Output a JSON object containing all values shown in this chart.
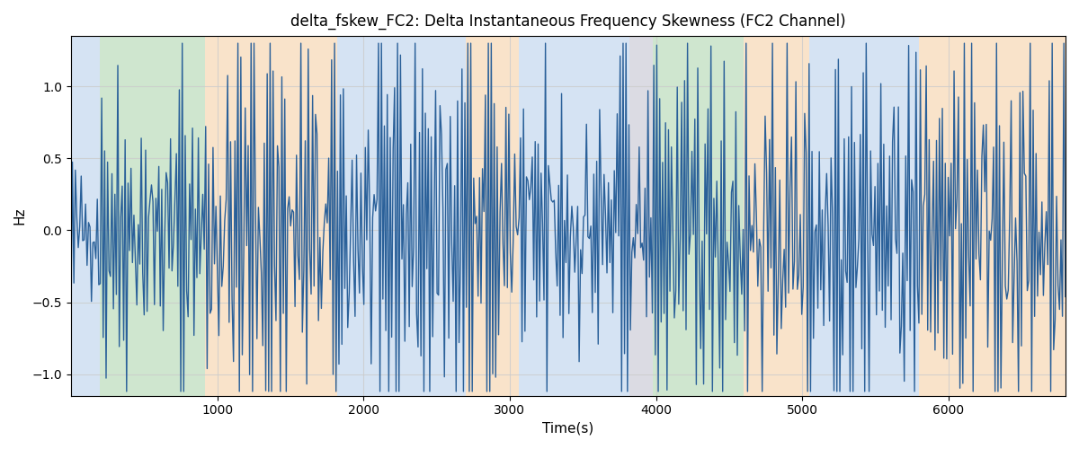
{
  "title": "delta_fskew_FC2: Delta Instantaneous Frequency Skewness (FC2 Channel)",
  "xlabel": "Time(s)",
  "ylabel": "Hz",
  "xlim": [
    0,
    6800
  ],
  "ylim": [
    -1.15,
    1.35
  ],
  "line_color": "#2a6099",
  "line_width": 1.0,
  "bg_bands": [
    {
      "xmin": 0,
      "xmax": 195,
      "color": "#adc8e8",
      "alpha": 0.5
    },
    {
      "xmin": 195,
      "xmax": 915,
      "color": "#96c896",
      "alpha": 0.45
    },
    {
      "xmin": 915,
      "xmax": 1820,
      "color": "#f5c896",
      "alpha": 0.5
    },
    {
      "xmin": 1820,
      "xmax": 2700,
      "color": "#adc8e8",
      "alpha": 0.5
    },
    {
      "xmin": 2700,
      "xmax": 3060,
      "color": "#f5c896",
      "alpha": 0.5
    },
    {
      "xmin": 3060,
      "xmax": 3820,
      "color": "#adc8e8",
      "alpha": 0.5
    },
    {
      "xmin": 3820,
      "xmax": 3980,
      "color": "#b8b8c8",
      "alpha": 0.5
    },
    {
      "xmin": 3980,
      "xmax": 4600,
      "color": "#96c896",
      "alpha": 0.45
    },
    {
      "xmin": 4600,
      "xmax": 5050,
      "color": "#f5c896",
      "alpha": 0.5
    },
    {
      "xmin": 5050,
      "xmax": 5800,
      "color": "#adc8e8",
      "alpha": 0.5
    },
    {
      "xmin": 5800,
      "xmax": 6800,
      "color": "#f5c896",
      "alpha": 0.5
    }
  ],
  "grid_color": "#cccccc",
  "grid_alpha": 0.8,
  "yticks": [
    -1.0,
    -0.5,
    0.0,
    0.5,
    1.0
  ],
  "xticks": [
    1000,
    2000,
    3000,
    4000,
    5000,
    6000
  ],
  "seed": 42,
  "n_points": 680,
  "figsize": [
    14.0,
    4.0
  ]
}
